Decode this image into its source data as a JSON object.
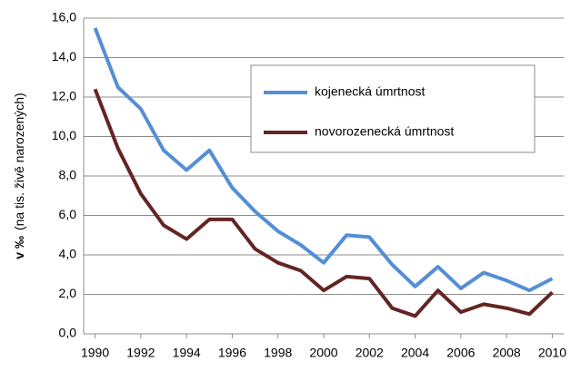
{
  "chart_data": {
    "type": "line",
    "ylabel_unit": "v ‰",
    "ylabel": "(na tis. živě narozených)",
    "x": [
      1990,
      1991,
      1992,
      1993,
      1994,
      1995,
      1996,
      1997,
      1998,
      1999,
      2000,
      2001,
      2002,
      2003,
      2004,
      2005,
      2006,
      2007,
      2008,
      2009,
      2010
    ],
    "xlim": [
      1989.5,
      2010.5
    ],
    "xticks": [
      1990,
      1992,
      1994,
      1996,
      1998,
      2000,
      2002,
      2004,
      2006,
      2008,
      2010
    ],
    "ylim": [
      0,
      16
    ],
    "yticks": [
      {
        "value": 0,
        "label": "0,0"
      },
      {
        "value": 2,
        "label": "2,0"
      },
      {
        "value": 4,
        "label": "4,0"
      },
      {
        "value": 6,
        "label": "6,0"
      },
      {
        "value": 8,
        "label": "8,0"
      },
      {
        "value": 10,
        "label": "10,0"
      },
      {
        "value": 12,
        "label": "12,0"
      },
      {
        "value": 14,
        "label": "14,0"
      },
      {
        "value": 16,
        "label": "16,0"
      }
    ],
    "grid": true,
    "series": [
      {
        "name": "kojenecká úmrtnost",
        "color": "#558ed5",
        "values": [
          15.5,
          12.5,
          11.4,
          9.3,
          8.3,
          9.3,
          7.4,
          6.2,
          5.2,
          4.5,
          3.6,
          5.0,
          4.9,
          3.5,
          2.4,
          3.4,
          2.3,
          3.1,
          2.7,
          2.2,
          2.8
        ]
      },
      {
        "name": "novorozenecká úmrtnost",
        "color": "#632523",
        "values": [
          12.4,
          9.4,
          7.1,
          5.5,
          4.8,
          5.8,
          5.8,
          4.3,
          3.6,
          3.2,
          2.2,
          2.9,
          2.8,
          1.3,
          0.9,
          2.2,
          1.1,
          1.5,
          1.3,
          1.0,
          2.1
        ]
      }
    ]
  }
}
